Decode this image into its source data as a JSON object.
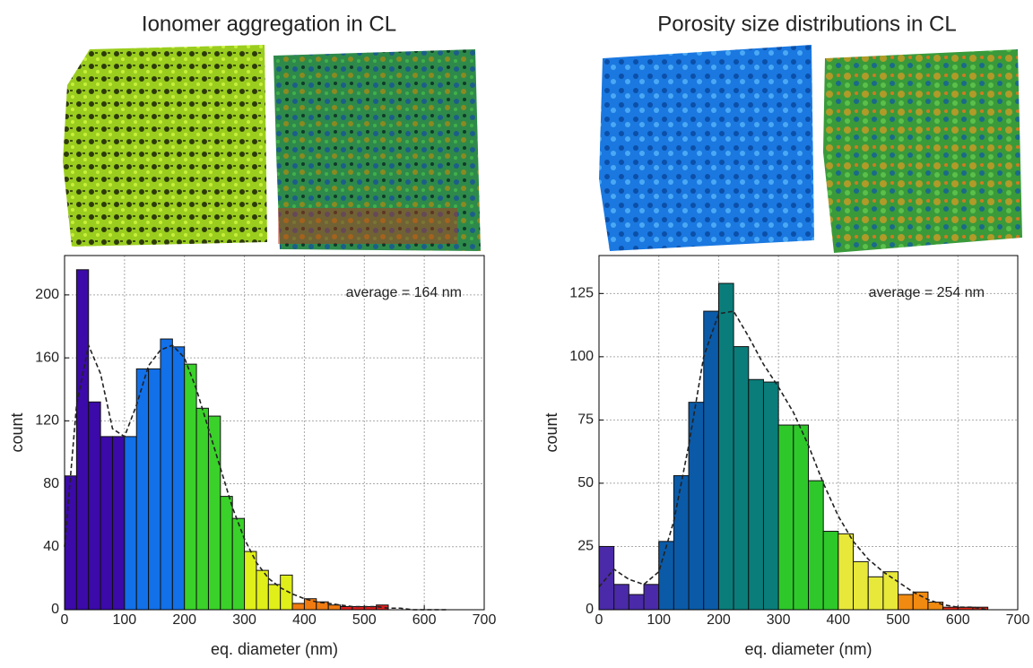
{
  "chart_data": [
    {
      "type": "histogram",
      "title": "Ionomer aggregation in CL",
      "xlabel": "eq. diameter (nm)",
      "ylabel": "count",
      "annotation": "average = 164 nm",
      "bins": [
        0,
        20,
        40,
        60,
        80,
        100,
        120,
        140,
        160,
        180,
        200,
        220,
        240,
        260,
        280,
        300,
        320,
        340,
        360,
        380,
        400,
        420,
        440,
        460,
        480,
        500,
        520,
        540
      ],
      "values": [
        85,
        216,
        132,
        110,
        110,
        110,
        153,
        153,
        172,
        167,
        156,
        128,
        123,
        72,
        58,
        37,
        25,
        16,
        22,
        4,
        7,
        5,
        3,
        2,
        2,
        2,
        3
      ],
      "colors": [
        "#3b0aa8",
        "#3b0aa8",
        "#3b0aa8",
        "#3b0aa8",
        "#3b0aa8",
        "#1270e8",
        "#1270e8",
        "#1270e8",
        "#1270e8",
        "#1270e8",
        "#3ad12a",
        "#3ad12a",
        "#3ad12a",
        "#3ad12a",
        "#3ad12a",
        "#e0ee1a",
        "#e0ee1a",
        "#e0ee1a",
        "#e0ee1a",
        "#f07b10",
        "#f07b10",
        "#f07b10",
        "#f07b10",
        "#e02020",
        "#e02020",
        "#e02020",
        "#e02020"
      ],
      "kde": {
        "x": [
          0,
          20,
          40,
          60,
          80,
          100,
          120,
          140,
          160,
          180,
          200,
          220,
          240,
          260,
          280,
          300,
          320,
          340,
          360,
          380,
          400,
          420,
          440,
          460,
          480,
          500,
          520,
          540,
          560,
          580,
          600,
          620,
          640
        ],
        "values": [
          40,
          130,
          168,
          150,
          115,
          110,
          130,
          155,
          165,
          168,
          160,
          140,
          115,
          90,
          65,
          45,
          30,
          20,
          14,
          10,
          7,
          5,
          4,
          3,
          2,
          2,
          2,
          1,
          1,
          0,
          0,
          0,
          0
        ]
      },
      "xlim": [
        0,
        700
      ],
      "xticks": [
        0,
        100,
        200,
        300,
        400,
        500,
        600,
        700
      ],
      "ylim": [
        0,
        225
      ],
      "yticks": [
        0,
        40,
        80,
        120,
        160,
        200
      ],
      "grid": true
    },
    {
      "type": "histogram",
      "title": "Porosity size distributions in CL",
      "xlabel": "eq. diameter (nm)",
      "ylabel": "count",
      "annotation": "average = 254 nm",
      "bins": [
        0,
        25,
        50,
        75,
        100,
        125,
        150,
        175,
        200,
        225,
        250,
        275,
        300,
        325,
        350,
        375,
        400,
        425,
        450,
        475,
        500,
        525,
        550,
        575,
        600,
        625,
        650
      ],
      "values": [
        25,
        10,
        6,
        10,
        27,
        53,
        82,
        118,
        129,
        104,
        91,
        90,
        73,
        73,
        51,
        31,
        30,
        19,
        13,
        15,
        6,
        7,
        3,
        1,
        1,
        1
      ],
      "colors": [
        "#4a2aa8",
        "#4a2aa8",
        "#4a2aa8",
        "#4a2aa8",
        "#0a5aa8",
        "#0a5aa8",
        "#0a5aa8",
        "#0a5aa8",
        "#0a7d7a",
        "#0a7d7a",
        "#0a7d7a",
        "#0a7d7a",
        "#2ec82a",
        "#2ec82a",
        "#2ec82a",
        "#2ec82a",
        "#e8e83a",
        "#e8e83a",
        "#e8e83a",
        "#e8e83a",
        "#f08a10",
        "#f08a10",
        "#f08a10",
        "#e02a1a",
        "#e02a1a",
        "#e02a1a"
      ],
      "kde": {
        "x": [
          0,
          25,
          50,
          75,
          100,
          125,
          150,
          175,
          200,
          225,
          250,
          275,
          300,
          325,
          350,
          375,
          400,
          425,
          450,
          475,
          500,
          525,
          550,
          575,
          600,
          625,
          650
        ],
        "values": [
          9,
          16,
          12,
          10,
          15,
          35,
          65,
          100,
          117,
          118,
          108,
          97,
          88,
          78,
          65,
          50,
          37,
          27,
          20,
          15,
          11,
          7,
          4,
          2,
          1,
          1,
          0
        ]
      },
      "xlim": [
        0,
        700
      ],
      "xticks": [
        0,
        100,
        200,
        300,
        400,
        500,
        600,
        700
      ],
      "ylim": [
        0,
        140
      ],
      "yticks": [
        0,
        25,
        50,
        75,
        100,
        125
      ],
      "grid": true
    }
  ]
}
